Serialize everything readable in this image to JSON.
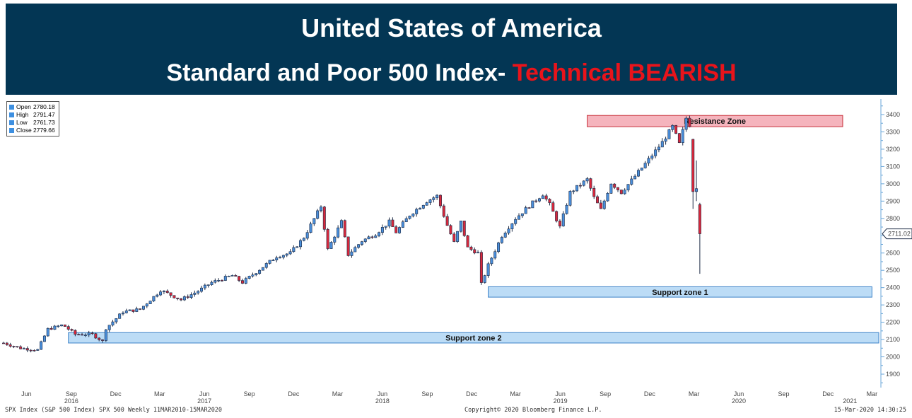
{
  "banner": {
    "title": "United States of America",
    "subtitle_prefix": "Standard and Poor 500 Index- ",
    "subtitle_highlight": "Technical BEARISH",
    "background": "#033654",
    "highlight_color": "#e8141b"
  },
  "ohlc_box": {
    "rows": [
      {
        "label": "Open",
        "value": "2780.18"
      },
      {
        "label": "High",
        "value": "2791.47"
      },
      {
        "label": "Low",
        "value": "2761.73"
      },
      {
        "label": "Close",
        "value": "2779.66"
      }
    ]
  },
  "footer": {
    "left": "SPX Index (S&P 500 Index) SPX 500  Weekly 11MAR2010-15MAR2020",
    "center": "Copyright© 2020 Bloomberg Finance L.P.",
    "right": "15-Mar-2020 14:30:25"
  },
  "chart_data": {
    "type": "candlestick",
    "frequency": "weekly",
    "ylim": [
      1800,
      3450
    ],
    "yticks": [
      1900,
      2000,
      2100,
      2200,
      2300,
      2400,
      2500,
      2600,
      2700,
      2800,
      2900,
      3000,
      3100,
      3200,
      3300,
      3400
    ],
    "last_price_label": "2711.02",
    "last_price": 2711.02,
    "x_range": [
      "2016-04-15",
      "2021-03-15"
    ],
    "x_ticks": [
      {
        "date": "2016-06-01",
        "label": "Jun"
      },
      {
        "date": "2016-09-01",
        "label": "Sep"
      },
      {
        "date": "2016-12-01",
        "label": "Dec"
      },
      {
        "date": "2017-03-01",
        "label": "Mar"
      },
      {
        "date": "2017-06-01",
        "label": "Jun"
      },
      {
        "date": "2017-09-01",
        "label": "Sep"
      },
      {
        "date": "2017-12-01",
        "label": "Dec"
      },
      {
        "date": "2018-03-01",
        "label": "Mar"
      },
      {
        "date": "2018-06-01",
        "label": "Jun"
      },
      {
        "date": "2018-09-01",
        "label": "Sep"
      },
      {
        "date": "2018-12-01",
        "label": "Dec"
      },
      {
        "date": "2019-03-01",
        "label": "Mar"
      },
      {
        "date": "2019-06-01",
        "label": "Jun"
      },
      {
        "date": "2019-09-01",
        "label": "Sep"
      },
      {
        "date": "2019-12-01",
        "label": "Dec"
      },
      {
        "date": "2020-03-01",
        "label": "Mar"
      },
      {
        "date": "2020-06-01",
        "label": "Jun"
      },
      {
        "date": "2020-09-01",
        "label": "Sep"
      },
      {
        "date": "2020-12-01",
        "label": "Dec"
      },
      {
        "date": "2021-03-01",
        "label": "Mar"
      }
    ],
    "year_labels": [
      {
        "date": "2016-09-01",
        "label": "2016"
      },
      {
        "date": "2017-06-01",
        "label": "2017"
      },
      {
        "date": "2018-06-01",
        "label": "2018"
      },
      {
        "date": "2019-06-01",
        "label": "2019"
      },
      {
        "date": "2020-06-01",
        "label": "2020"
      },
      {
        "date": "2021-01-15",
        "label": "2021"
      }
    ],
    "zones": [
      {
        "name": "Resistance Zone",
        "from": "2019-07-26",
        "to": "2020-12-31",
        "low": 3330,
        "high": 3395,
        "fill": "#f5b4bd",
        "stroke": "#c8323c"
      },
      {
        "name": "Support zone 1",
        "from": "2019-01-04",
        "to": "2021-03-01",
        "low": 2345,
        "high": 2405,
        "fill": "#bcdcf6",
        "stroke": "#3c82c8"
      },
      {
        "name": "Support zone 2",
        "from": "2016-08-26",
        "to": "2021-03-15",
        "low": 2080,
        "high": 2140,
        "fill": "#bcdcf6",
        "stroke": "#3c82c8"
      }
    ],
    "anchors": [
      {
        "date": "2016-04-15",
        "close": 2080
      },
      {
        "date": "2016-05-20",
        "close": 2050
      },
      {
        "date": "2016-06-24",
        "close": 2040
      },
      {
        "date": "2016-07-15",
        "close": 2160
      },
      {
        "date": "2016-08-15",
        "close": 2185
      },
      {
        "date": "2016-09-09",
        "close": 2130
      },
      {
        "date": "2016-10-14",
        "close": 2130
      },
      {
        "date": "2016-11-04",
        "close": 2090
      },
      {
        "date": "2016-11-11",
        "close": 2165
      },
      {
        "date": "2016-12-16",
        "close": 2260
      },
      {
        "date": "2017-01-20",
        "close": 2275
      },
      {
        "date": "2017-02-24",
        "close": 2365
      },
      {
        "date": "2017-03-03",
        "close": 2385
      },
      {
        "date": "2017-04-14",
        "close": 2330
      },
      {
        "date": "2017-05-19",
        "close": 2380
      },
      {
        "date": "2017-06-16",
        "close": 2430
      },
      {
        "date": "2017-07-28",
        "close": 2470
      },
      {
        "date": "2017-08-18",
        "close": 2430
      },
      {
        "date": "2017-09-29",
        "close": 2520
      },
      {
        "date": "2017-10-27",
        "close": 2580
      },
      {
        "date": "2017-11-24",
        "close": 2600
      },
      {
        "date": "2017-12-22",
        "close": 2690
      },
      {
        "date": "2018-01-26",
        "close": 2870
      },
      {
        "date": "2018-02-09",
        "close": 2620
      },
      {
        "date": "2018-03-09",
        "close": 2780
      },
      {
        "date": "2018-03-23",
        "close": 2590
      },
      {
        "date": "2018-04-20",
        "close": 2670
      },
      {
        "date": "2018-05-18",
        "close": 2710
      },
      {
        "date": "2018-06-15",
        "close": 2780
      },
      {
        "date": "2018-06-29",
        "close": 2720
      },
      {
        "date": "2018-07-27",
        "close": 2820
      },
      {
        "date": "2018-08-31",
        "close": 2900
      },
      {
        "date": "2018-09-21",
        "close": 2930
      },
      {
        "date": "2018-10-12",
        "close": 2760
      },
      {
        "date": "2018-10-26",
        "close": 2660
      },
      {
        "date": "2018-11-09",
        "close": 2780
      },
      {
        "date": "2018-11-23",
        "close": 2630
      },
      {
        "date": "2018-12-14",
        "close": 2600
      },
      {
        "date": "2018-12-21",
        "close": 2420
      },
      {
        "date": "2019-01-04",
        "close": 2530
      },
      {
        "date": "2019-02-01",
        "close": 2700
      },
      {
        "date": "2019-03-01",
        "close": 2800
      },
      {
        "date": "2019-04-05",
        "close": 2890
      },
      {
        "date": "2019-04-26",
        "close": 2940
      },
      {
        "date": "2019-05-10",
        "close": 2880
      },
      {
        "date": "2019-05-31",
        "close": 2750
      },
      {
        "date": "2019-06-21",
        "close": 2950
      },
      {
        "date": "2019-07-26",
        "close": 3025
      },
      {
        "date": "2019-08-09",
        "close": 2920
      },
      {
        "date": "2019-08-23",
        "close": 2850
      },
      {
        "date": "2019-09-13",
        "close": 3005
      },
      {
        "date": "2019-10-04",
        "close": 2950
      },
      {
        "date": "2019-10-25",
        "close": 3020
      },
      {
        "date": "2019-11-29",
        "close": 3140
      },
      {
        "date": "2019-12-27",
        "close": 3240
      },
      {
        "date": "2020-01-17",
        "close": 3330
      },
      {
        "date": "2020-01-31",
        "close": 3230
      },
      {
        "date": "2020-02-14",
        "close": 3380
      },
      {
        "date": "2020-02-21",
        "close": 3340
      },
      {
        "date": "2020-02-28",
        "close": 2955
      },
      {
        "date": "2020-03-06",
        "close": 2970
      },
      {
        "date": "2020-03-13",
        "close": 2711
      }
    ],
    "candles_shown": [
      {
        "date": "2020-02-28",
        "open": 3257,
        "high": 3260,
        "low": 2855,
        "close": 2955
      },
      {
        "date": "2020-03-06",
        "open": 2955,
        "high": 3135,
        "low": 2900,
        "close": 2972
      },
      {
        "date": "2020-03-13",
        "open": 2880,
        "high": 2890,
        "low": 2480,
        "close": 2711
      }
    ],
    "colors": {
      "up": "#4a8fdc",
      "down": "#d8283c",
      "outline": "#1c2a44"
    }
  }
}
